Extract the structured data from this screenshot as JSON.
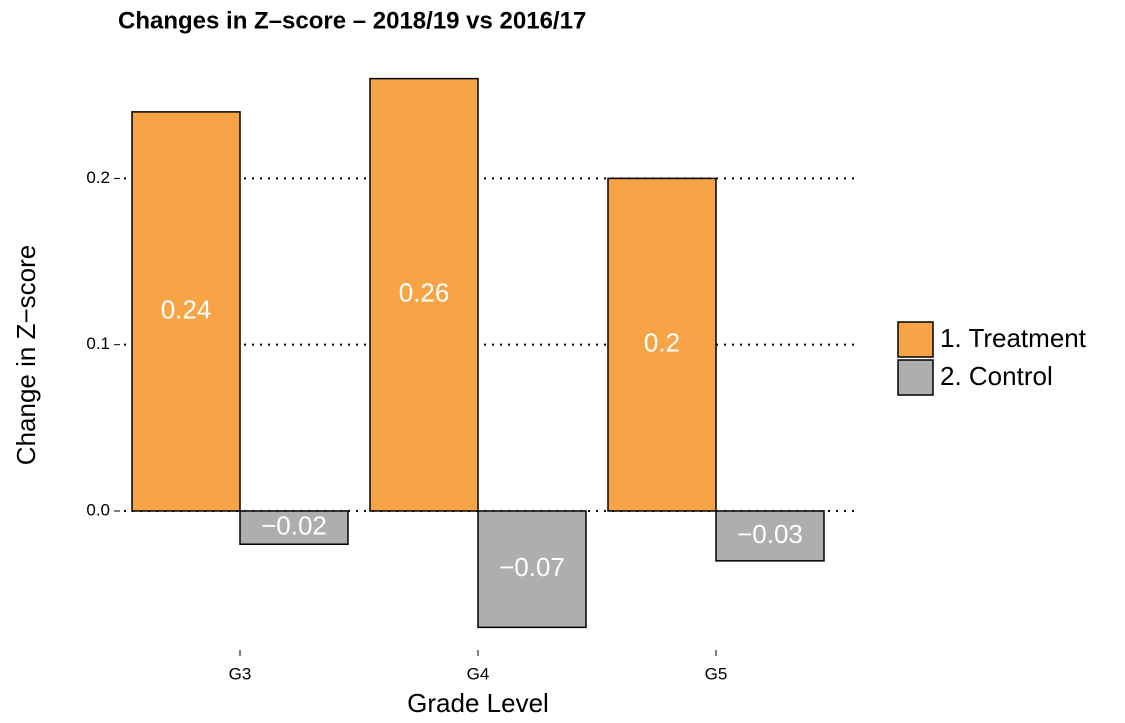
{
  "chart_data": {
    "type": "bar",
    "title": "Changes in Z–score – 2018/19 vs 2016/17",
    "x_label": "Grade Level",
    "y_label": "Change in Z−score",
    "categories": [
      "G3",
      "G4",
      "G5"
    ],
    "series": [
      {
        "name": "1. Treatment",
        "color": "#f7a446",
        "values": [
          0.24,
          0.26,
          0.2
        ]
      },
      {
        "name": "2. Control",
        "color": "#aeaeae",
        "values": [
          -0.02,
          -0.07,
          -0.03
        ],
        "value_labels": [
          "−0.02",
          "−0.07",
          "−0.03"
        ]
      }
    ],
    "ylim": [
      -0.08,
      0.27
    ],
    "yticks": [
      {
        "value": 0,
        "label": "0.0"
      },
      0.1,
      0.2
    ],
    "grid": true,
    "legend": "right"
  }
}
